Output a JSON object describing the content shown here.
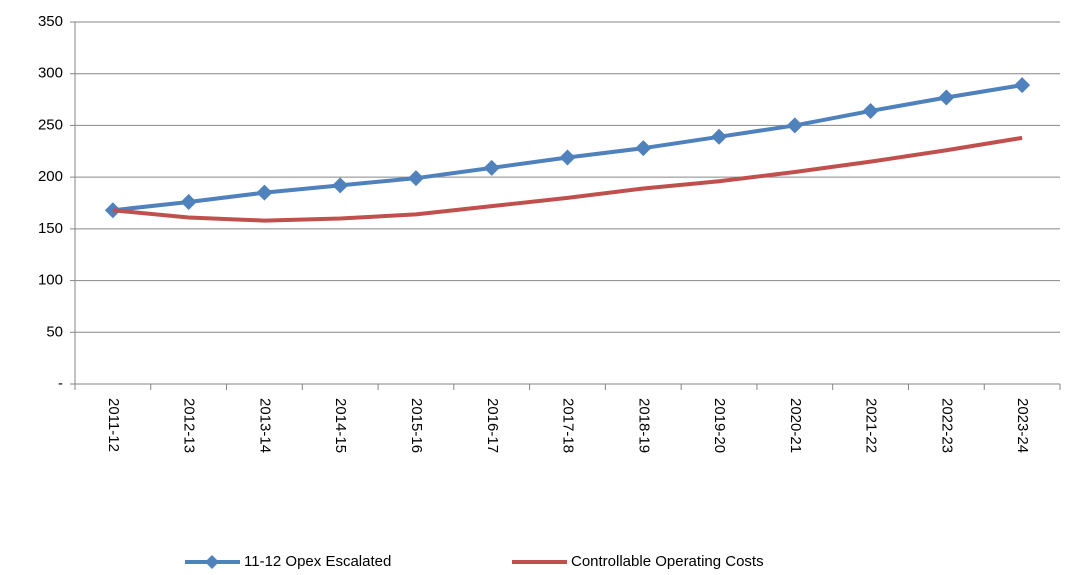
{
  "chart_data": {
    "type": "line",
    "categories": [
      "2011-12",
      "2012-13",
      "2013-14",
      "2014-15",
      "2015-16",
      "2016-17",
      "2017-18",
      "2018-19",
      "2019-20",
      "2020-21",
      "2021-22",
      "2022-23",
      "2023-24"
    ],
    "series": [
      {
        "name": "11-12 Opex Escalated",
        "color": "#4f81bd",
        "marker": "diamond",
        "values": [
          168,
          176,
          185,
          192,
          199,
          209,
          219,
          228,
          239,
          250,
          264,
          277,
          289
        ]
      },
      {
        "name": "Controllable Operating Costs",
        "color": "#c0504d",
        "values": [
          168,
          161,
          158,
          160,
          164,
          172,
          180,
          189,
          196,
          205,
          215,
          226,
          238
        ]
      }
    ],
    "ylim": [
      0,
      350
    ],
    "yticks": [
      {
        "value": 0,
        "label": "-"
      },
      50,
      100,
      150,
      200,
      250,
      300,
      350
    ],
    "grid": true,
    "legend": "bottom"
  }
}
